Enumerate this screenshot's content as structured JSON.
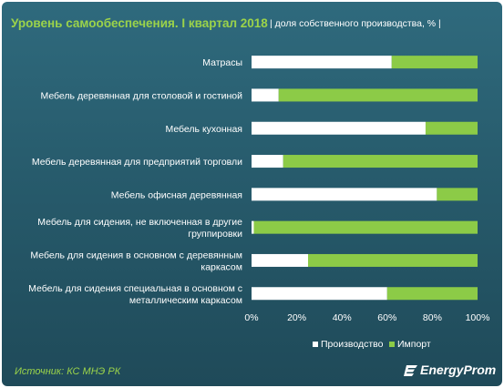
{
  "header": {
    "title": "Уровень самообеспечения. I квартал 2018",
    "subtitle": "| доля собственного производства, % |"
  },
  "footer": {
    "source": "Источник: КС МНЭ РК",
    "logo_text": "EnergyProm"
  },
  "colors": {
    "production": "#ffffff",
    "import": "#8ccb47",
    "text": "#ffffff",
    "accent": "#9bd34a"
  },
  "chart_data": {
    "type": "bar",
    "orientation": "horizontal",
    "stacked": true,
    "categories": [
      [
        "Матрасы"
      ],
      [
        "Мебель деревянная для столовой и гостиной"
      ],
      [
        "Мебель кухонная"
      ],
      [
        "Мебель деревянная для предприятий торговли"
      ],
      [
        "Мебель офисная деревянная"
      ],
      [
        "Мебель для сидения, не включенная в другие",
        "группировки"
      ],
      [
        "Мебель для сидения в основном с деревянным",
        "каркасом"
      ],
      [
        "Мебель для сидения специальная в основном с",
        "металлическим каркасом"
      ]
    ],
    "series": [
      {
        "name": "Производство",
        "values": [
          62,
          12,
          77,
          14,
          82,
          1,
          25,
          60
        ]
      },
      {
        "name": "Импорт",
        "values": [
          38,
          88,
          23,
          86,
          18,
          99,
          75,
          40
        ]
      }
    ],
    "x_ticks": [
      "0%",
      "20%",
      "40%",
      "60%",
      "80%",
      "100%"
    ],
    "xlim": [
      0,
      100
    ],
    "grid": false,
    "legend_position": "bottom"
  }
}
